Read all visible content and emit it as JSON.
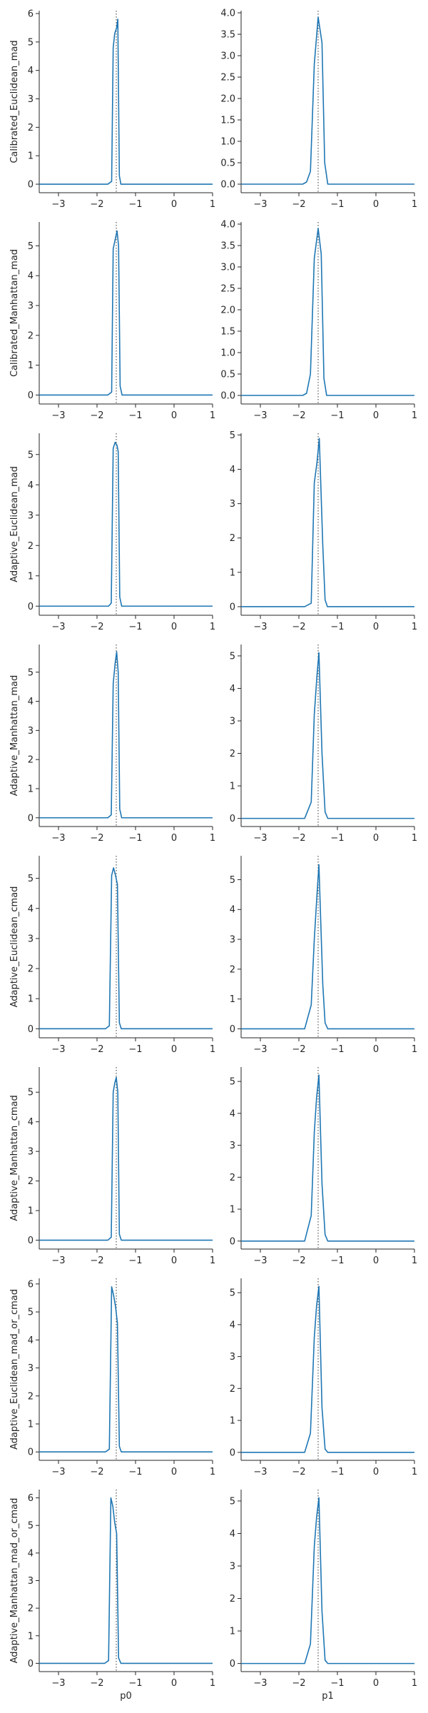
{
  "chart_data": {
    "type": "line",
    "line_color": "#1f77b4",
    "reference_line": {
      "x": -1.5,
      "style": "dotted",
      "color": "#333333"
    },
    "x_ticks": [
      -3,
      -2,
      -1,
      0,
      1
    ],
    "x_tick_labels": [
      "−3",
      "−2",
      "−1",
      "0",
      "1"
    ],
    "xlim": [
      -3.5,
      1
    ],
    "columns": [
      "p0",
      "p1"
    ],
    "rows": [
      {
        "name": "Calibrated_Euclidean_mad",
        "panels": [
          {
            "ylim": [
              -0.3,
              6.1
            ],
            "yticks": [
              0,
              1,
              2,
              3,
              4,
              5,
              6
            ],
            "x": [
              -3.5,
              -1.72,
              -1.62,
              -1.58,
              -1.54,
              -1.49,
              -1.46,
              -1.42,
              -1.38,
              1
            ],
            "y": [
              0,
              0,
              0.1,
              4.8,
              5.3,
              5.5,
              5.8,
              0.3,
              0,
              0
            ]
          },
          {
            "ylim": [
              -0.2,
              4.05
            ],
            "yticks": [
              0,
              0.5,
              1.0,
              1.5,
              2.0,
              2.5,
              3.0,
              3.5,
              4.0
            ],
            "ytick_labels": [
              "0.0",
              "0.5",
              "1.0",
              "1.5",
              "2.0",
              "2.5",
              "3.0",
              "3.5",
              "4.0"
            ],
            "x": [
              -3.5,
              -1.9,
              -1.8,
              -1.7,
              -1.6,
              -1.5,
              -1.4,
              -1.33,
              -1.25,
              1
            ],
            "y": [
              0,
              0,
              0.05,
              0.3,
              2.8,
              3.9,
              3.3,
              0.5,
              0,
              0
            ]
          }
        ]
      },
      {
        "name": "Calibrated_Manhattan_mad",
        "panels": [
          {
            "ylim": [
              -0.3,
              5.8
            ],
            "yticks": [
              0,
              1,
              2,
              3,
              4,
              5
            ],
            "x": [
              -3.5,
              -1.72,
              -1.62,
              -1.58,
              -1.53,
              -1.48,
              -1.44,
              -1.4,
              -1.35,
              1
            ],
            "y": [
              0,
              0,
              0.1,
              4.9,
              5.2,
              5.5,
              5.0,
              0.3,
              0,
              0
            ]
          },
          {
            "ylim": [
              -0.2,
              4.05
            ],
            "yticks": [
              0,
              0.5,
              1.0,
              1.5,
              2.0,
              2.5,
              3.0,
              3.5,
              4.0
            ],
            "ytick_labels": [
              "0.0",
              "0.5",
              "1.0",
              "1.5",
              "2.0",
              "2.5",
              "3.0",
              "3.5",
              "4.0"
            ],
            "x": [
              -3.5,
              -1.9,
              -1.8,
              -1.7,
              -1.6,
              -1.5,
              -1.42,
              -1.35,
              -1.28,
              1
            ],
            "y": [
              0,
              0,
              0.05,
              0.5,
              3.2,
              3.9,
              3.3,
              0.4,
              0,
              0
            ]
          }
        ]
      },
      {
        "name": "Adaptive_Euclidean_mad",
        "panels": [
          {
            "ylim": [
              -0.3,
              5.7
            ],
            "yticks": [
              0,
              1,
              2,
              3,
              4,
              5
            ],
            "x": [
              -3.5,
              -1.7,
              -1.63,
              -1.58,
              -1.53,
              -1.48,
              -1.45,
              -1.41,
              -1.36,
              1
            ],
            "y": [
              0,
              0,
              0.1,
              5.2,
              5.4,
              5.3,
              5.1,
              0.3,
              0,
              0
            ]
          },
          {
            "ylim": [
              -0.25,
              5.05
            ],
            "yticks": [
              0,
              1,
              2,
              3,
              4,
              5
            ],
            "x": [
              -3.5,
              -1.85,
              -1.68,
              -1.6,
              -1.53,
              -1.47,
              -1.38,
              -1.32,
              -1.26,
              1
            ],
            "y": [
              0,
              0,
              0.1,
              3.6,
              4.2,
              4.9,
              1.8,
              0.2,
              0,
              0
            ]
          }
        ]
      },
      {
        "name": "Adaptive_Manhattan_mad",
        "panels": [
          {
            "ylim": [
              -0.3,
              5.95
            ],
            "yticks": [
              0,
              1,
              2,
              3,
              4,
              5
            ],
            "x": [
              -3.5,
              -1.72,
              -1.63,
              -1.58,
              -1.53,
              -1.49,
              -1.45,
              -1.41,
              -1.36,
              1
            ],
            "y": [
              0,
              0,
              0.1,
              4.6,
              5.3,
              5.7,
              5.0,
              0.3,
              0,
              0
            ]
          },
          {
            "ylim": [
              -0.25,
              5.35
            ],
            "yticks": [
              0,
              1,
              2,
              3,
              4,
              5
            ],
            "x": [
              -3.5,
              -1.85,
              -1.68,
              -1.6,
              -1.53,
              -1.48,
              -1.4,
              -1.32,
              -1.25,
              1
            ],
            "y": [
              0,
              0,
              0.5,
              3.2,
              4.4,
              5.1,
              2.0,
              0.2,
              0,
              0
            ]
          }
        ]
      },
      {
        "name": "Adaptive_Euclidean_cmad",
        "panels": [
          {
            "ylim": [
              -0.3,
              5.75
            ],
            "yticks": [
              0,
              1,
              2,
              3,
              4,
              5
            ],
            "x": [
              -3.5,
              -1.78,
              -1.68,
              -1.62,
              -1.57,
              -1.52,
              -1.47,
              -1.42,
              -1.37,
              1
            ],
            "y": [
              0,
              0,
              0.1,
              5.1,
              5.35,
              5.1,
              4.8,
              0.2,
              0,
              0
            ]
          },
          {
            "ylim": [
              -0.3,
              5.8
            ],
            "yticks": [
              0,
              1,
              2,
              3,
              4,
              5
            ],
            "x": [
              -3.5,
              -1.85,
              -1.68,
              -1.6,
              -1.53,
              -1.48,
              -1.38,
              -1.32,
              -1.25,
              1
            ],
            "y": [
              0,
              0,
              0.8,
              3.0,
              4.5,
              5.5,
              1.5,
              0.2,
              0,
              0
            ]
          }
        ]
      },
      {
        "name": "Adaptive_Manhattan_cmad",
        "panels": [
          {
            "ylim": [
              -0.3,
              5.85
            ],
            "yticks": [
              0,
              1,
              2,
              3,
              4,
              5
            ],
            "x": [
              -3.5,
              -1.72,
              -1.63,
              -1.58,
              -1.54,
              -1.5,
              -1.46,
              -1.42,
              -1.37,
              1
            ],
            "y": [
              0,
              0,
              0.1,
              5.0,
              5.3,
              5.5,
              5.0,
              0.2,
              0,
              0
            ]
          },
          {
            "ylim": [
              -0.25,
              5.45
            ],
            "yticks": [
              0,
              1,
              2,
              3,
              4,
              5
            ],
            "x": [
              -3.5,
              -1.85,
              -1.68,
              -1.6,
              -1.54,
              -1.48,
              -1.4,
              -1.32,
              -1.25,
              1
            ],
            "y": [
              0,
              0,
              0.8,
              3.4,
              4.5,
              5.2,
              1.8,
              0.2,
              0,
              0
            ]
          }
        ]
      },
      {
        "name": "Adaptive_Euclidean_mad_or_cmad",
        "panels": [
          {
            "ylim": [
              -0.3,
              6.2
            ],
            "yticks": [
              0,
              1,
              2,
              3,
              4,
              5,
              6
            ],
            "x": [
              -3.5,
              -1.78,
              -1.68,
              -1.62,
              -1.57,
              -1.52,
              -1.47,
              -1.42,
              -1.37,
              1
            ],
            "y": [
              0,
              0,
              0.1,
              5.9,
              5.6,
              5.2,
              4.6,
              0.2,
              0,
              0
            ]
          },
          {
            "ylim": [
              -0.25,
              5.45
            ],
            "yticks": [
              0,
              1,
              2,
              3,
              4,
              5
            ],
            "x": [
              -3.5,
              -1.85,
              -1.7,
              -1.6,
              -1.54,
              -1.48,
              -1.4,
              -1.32,
              -1.25,
              1
            ],
            "y": [
              0,
              0,
              0.6,
              3.6,
              4.6,
              5.2,
              1.4,
              0.1,
              0,
              0
            ]
          }
        ]
      },
      {
        "name": "Adaptive_Manhattan_mad_or_cmad",
        "panels": [
          {
            "ylim": [
              -0.3,
              6.3
            ],
            "yticks": [
              0,
              1,
              2,
              3,
              4,
              5,
              6
            ],
            "x": [
              -3.5,
              -1.8,
              -1.7,
              -1.64,
              -1.59,
              -1.54,
              -1.49,
              -1.44,
              -1.38,
              1
            ],
            "y": [
              0,
              0,
              0.1,
              6.0,
              5.7,
              5.1,
              4.7,
              0.2,
              0,
              0
            ]
          },
          {
            "ylim": [
              -0.25,
              5.35
            ],
            "yticks": [
              0,
              1,
              2,
              3,
              4,
              5
            ],
            "x": [
              -3.5,
              -1.85,
              -1.7,
              -1.6,
              -1.54,
              -1.48,
              -1.4,
              -1.32,
              -1.25,
              1
            ],
            "y": [
              0,
              0,
              0.6,
              3.6,
              4.5,
              5.1,
              1.6,
              0.1,
              0,
              0
            ]
          }
        ]
      }
    ]
  }
}
